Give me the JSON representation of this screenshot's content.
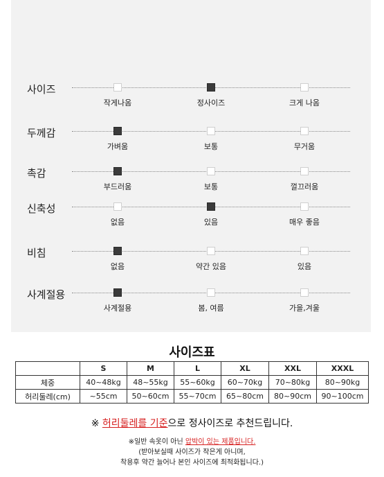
{
  "attributes": [
    {
      "label": "사이즈",
      "options": [
        "작게나옴",
        "정사이즈",
        "크게 나옴"
      ],
      "selected": 1
    },
    {
      "label": "두께감",
      "options": [
        "가벼움",
        "보통",
        "무거움"
      ],
      "selected": 0
    },
    {
      "label": "촉감",
      "options": [
        "부드러움",
        "보통",
        "껄끄러움"
      ],
      "selected": 0
    },
    {
      "label": "신축성",
      "options": [
        "없음",
        "있음",
        "매우 좋음"
      ],
      "selected": 1
    },
    {
      "label": "비침",
      "options": [
        "없음",
        "약간 있음",
        "있음"
      ],
      "selected": 0
    },
    {
      "label": "사계절용",
      "options": [
        "사계절용",
        "봄, 여름",
        "가을,겨울"
      ],
      "selected": 0
    }
  ],
  "size_table": {
    "title": "사이즈표",
    "headers": [
      "",
      "S",
      "M",
      "L",
      "XL",
      "XXL",
      "XXXL"
    ],
    "rows": [
      [
        "체중",
        "40~48kg",
        "48~55kg",
        "55~60kg",
        "60~70kg",
        "70~80kg",
        "80~90kg"
      ],
      [
        "허리둘레(cm)",
        "~55cm",
        "50~60cm",
        "55~70cm",
        "65~80cm",
        "80~90cm",
        "90~100cm"
      ]
    ]
  },
  "notes": {
    "mark": "※ ",
    "highlight": "허리둘레를 기준",
    "rest": "으로 정사이즈로 추천드립니다.",
    "sub_prefix": "※일반 속옷이 아닌 ",
    "sub_highlight": "압박이 있는 제품입니다.",
    "line2": "(받아보실때 사이즈가 작은게 아니며,",
    "line3": "착용후 약간 늘어나 본인 사이즈에 최적화됩니다.)"
  },
  "colors": {
    "panel": "#f2f2f2",
    "selected_box": "#3b3b3b",
    "accent_red": "#d61f1f"
  }
}
